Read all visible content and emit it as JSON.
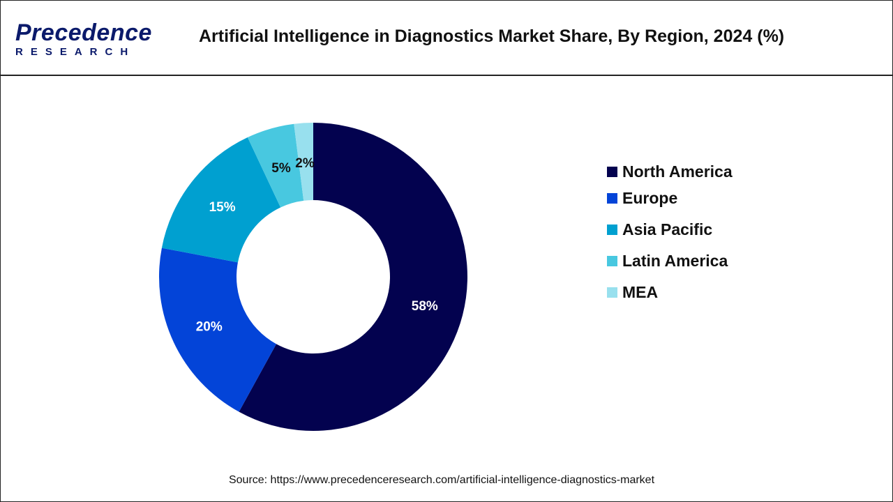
{
  "header": {
    "logo_main": "Precedence",
    "logo_sub": "RESEARCH",
    "title": "Artificial Intelligence in Diagnostics Market Share, By Region, 2024 (%)"
  },
  "chart_data": {
    "type": "pie",
    "donut": true,
    "title": "Artificial Intelligence in Diagnostics Market Share, By Region, 2024 (%)",
    "categories": [
      "North America",
      "Europe",
      "Asia Pacific",
      "Latin America",
      "MEA"
    ],
    "values": [
      58,
      20,
      15,
      5,
      2
    ],
    "labels": [
      "58%",
      "20%",
      "15%",
      "5%",
      "2%"
    ],
    "colors": [
      "#03024f",
      "#0344d8",
      "#00a0d0",
      "#48c8e0",
      "#98e0ee"
    ],
    "label_colors": [
      "#ffffff",
      "#ffffff",
      "#ffffff",
      "#111111",
      "#111111"
    ],
    "legend_position": "right",
    "start": "top",
    "direction": "clockwise"
  },
  "footer": {
    "source": "Source: https://www.precedenceresearch.com/artificial-intelligence-diagnostics-market"
  }
}
